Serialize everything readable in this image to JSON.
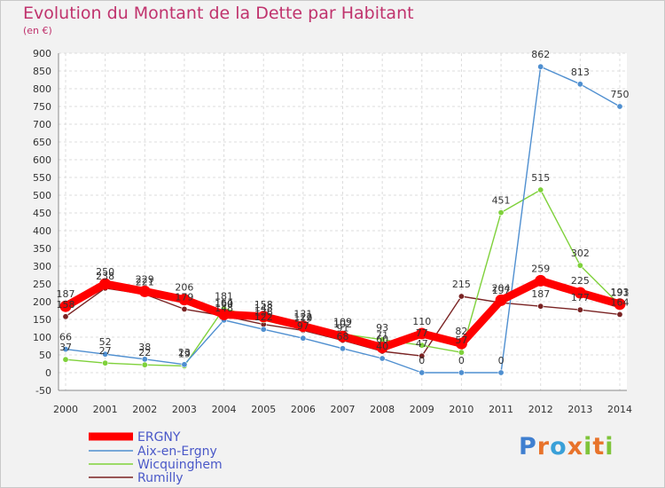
{
  "title": "Evolution du Montant de la Dette par Habitant",
  "subtitle": "(en €)",
  "brand": "Proxiti",
  "chart_data": {
    "type": "line",
    "x": [
      "2000",
      "2001",
      "2002",
      "2003",
      "2004",
      "2005",
      "2006",
      "2007",
      "2008",
      "2009",
      "2010",
      "2011",
      "2012",
      "2013",
      "2014"
    ],
    "ylim": [
      -50,
      900
    ],
    "yticks": [
      -50,
      0,
      50,
      100,
      150,
      200,
      250,
      300,
      350,
      400,
      450,
      500,
      550,
      600,
      650,
      700,
      750,
      800,
      850,
      900
    ],
    "grid": true,
    "legend_position": "bottom-left",
    "series": [
      {
        "name": "ERGNY",
        "color": "#ff0000",
        "values": [
          187,
          250,
          229,
          206,
          164,
          158,
          131,
          102,
          71,
          110,
          82,
          204,
          259,
          225,
          193
        ],
        "labels": [
          "187",
          "250",
          "229",
          "206",
          "164",
          "158",
          "131",
          "102",
          "71",
          "110",
          "82",
          "204",
          "259",
          "225",
          "193"
        ]
      },
      {
        "name": "Aix-en-Ergny",
        "color": "#4f8fd0",
        "values": [
          66,
          52,
          38,
          23,
          148,
          122,
          97,
          68,
          40,
          0,
          0,
          0,
          862,
          813,
          750
        ],
        "labels": [
          "66",
          "52",
          "38",
          "23",
          "148",
          "122",
          "97",
          "68",
          "40",
          "0",
          "0",
          "0",
          "862",
          "813",
          "750"
        ]
      },
      {
        "name": "Wicquinghem",
        "color": "#7fd13b",
        "values": [
          37,
          27,
          22,
          19,
          181,
          148,
          122,
          109,
          93,
          77,
          57,
          451,
          515,
          302,
          191
        ],
        "labels": [
          "37",
          "27",
          "22",
          "19",
          "181",
          "148",
          "122",
          "109",
          "93",
          "77",
          "57",
          "451",
          "515",
          "302",
          "191"
        ]
      },
      {
        "name": "Rumilly",
        "color": "#7a2323",
        "values": [
          158,
          238,
          221,
          179,
          160,
          136,
          119,
          91,
          60,
          47,
          215,
          197,
          187,
          177,
          164
        ],
        "labels": [
          "158",
          "238",
          "221",
          "179",
          "160",
          "136",
          "119",
          "91",
          "60",
          "47",
          "215",
          "197",
          "187",
          "177",
          "164"
        ]
      }
    ]
  }
}
